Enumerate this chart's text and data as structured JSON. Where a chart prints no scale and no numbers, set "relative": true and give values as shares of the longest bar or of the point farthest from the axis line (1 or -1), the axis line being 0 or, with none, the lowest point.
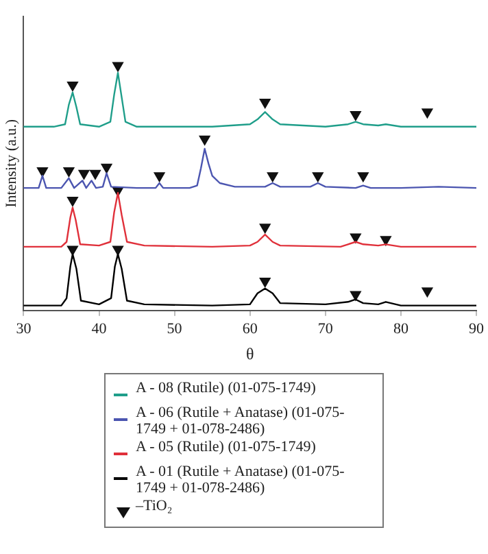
{
  "chart_data": {
    "type": "line",
    "xlabel": "θ",
    "ylabel": "Intensity (a.u.)",
    "relative": true,
    "xlim": [
      30,
      90
    ],
    "xticks": [
      30,
      40,
      50,
      60,
      70,
      80,
      90
    ],
    "grid": false,
    "legend": "bottom",
    "marker": "none",
    "series": [
      {
        "name": "A - 08 (Rutile) (01-075-1749)",
        "color": "#1f9e8a",
        "x": [
          30,
          34,
          35.5,
          36,
          36.5,
          37,
          37.5,
          40,
          41.5,
          42,
          42.5,
          43,
          43.5,
          45,
          50,
          55,
          60,
          61,
          62,
          63,
          64,
          70,
          73,
          74,
          75,
          77,
          78,
          80,
          85,
          90
        ],
        "values": [
          0.75,
          0.75,
          0.76,
          0.84,
          0.89,
          0.83,
          0.76,
          0.75,
          0.77,
          0.88,
          0.97,
          0.87,
          0.77,
          0.75,
          0.75,
          0.75,
          0.76,
          0.78,
          0.81,
          0.78,
          0.76,
          0.75,
          0.76,
          0.77,
          0.76,
          0.755,
          0.76,
          0.75,
          0.75,
          0.75
        ]
      },
      {
        "name": "A - 06 (Rutile + Anatase) (01-075-1749 + 01-078-2486)",
        "color": "#4b55b0",
        "x": [
          30,
          32,
          32.5,
          33,
          35,
          36,
          36.7,
          37.8,
          38.3,
          39,
          39.6,
          40.5,
          41,
          41.6,
          45,
          47.5,
          48,
          48.5,
          52,
          53,
          53.5,
          54,
          54.5,
          55,
          56,
          58,
          62,
          63,
          64,
          68,
          69,
          70,
          74,
          75,
          76,
          80,
          85,
          90
        ],
        "values": [
          0.5,
          0.5,
          0.55,
          0.5,
          0.5,
          0.54,
          0.5,
          0.53,
          0.5,
          0.53,
          0.5,
          0.505,
          0.56,
          0.505,
          0.5,
          0.5,
          0.52,
          0.5,
          0.5,
          0.51,
          0.58,
          0.66,
          0.6,
          0.55,
          0.52,
          0.505,
          0.505,
          0.52,
          0.505,
          0.505,
          0.52,
          0.505,
          0.5,
          0.51,
          0.5,
          0.5,
          0.505,
          0.5
        ]
      },
      {
        "name": "A - 05 (Rutile) (01-075-1749)",
        "color": "#e0303a",
        "x": [
          30,
          35,
          35.7,
          36.2,
          36.5,
          36.9,
          37.5,
          40,
          41.5,
          42,
          42.5,
          43,
          43.7,
          46,
          55,
          60,
          61,
          62,
          63,
          64,
          72,
          73,
          74,
          75,
          77,
          78,
          80,
          90
        ],
        "values": [
          0.26,
          0.26,
          0.28,
          0.38,
          0.42,
          0.37,
          0.27,
          0.265,
          0.28,
          0.4,
          0.48,
          0.39,
          0.28,
          0.265,
          0.26,
          0.265,
          0.28,
          0.31,
          0.28,
          0.265,
          0.26,
          0.27,
          0.28,
          0.27,
          0.265,
          0.27,
          0.26,
          0.26
        ]
      },
      {
        "name": "A - 01 (Rutile + Anatase) (01-075-1749 + 01-078-2486)",
        "color": "#000000",
        "x": [
          30,
          35,
          35.7,
          36.2,
          36.5,
          37,
          37.6,
          40,
          41.6,
          42.1,
          42.5,
          43,
          43.7,
          46,
          55,
          60,
          61,
          62,
          63,
          64,
          70,
          73,
          74,
          75,
          77,
          78,
          80,
          90
        ],
        "values": [
          0.02,
          0.02,
          0.05,
          0.18,
          0.23,
          0.17,
          0.04,
          0.025,
          0.05,
          0.18,
          0.23,
          0.17,
          0.04,
          0.025,
          0.02,
          0.025,
          0.07,
          0.09,
          0.07,
          0.03,
          0.025,
          0.035,
          0.045,
          0.03,
          0.025,
          0.035,
          0.02,
          0.02
        ]
      },
      {
        "name": "–TiO₂",
        "type": "scatter",
        "marker": "triangle",
        "color": "#111111",
        "x": [
          36.5,
          42.5,
          62,
          74,
          83.5,
          32.5,
          36,
          38,
          39.5,
          41,
          48,
          54,
          63,
          69,
          75,
          36.5,
          42.5,
          62,
          74,
          78,
          36.5,
          42.5,
          62,
          74,
          83.5
        ],
        "values": [
          0.92,
          1.0,
          0.85,
          0.8,
          0.81,
          0.57,
          0.57,
          0.56,
          0.56,
          0.585,
          0.55,
          0.7,
          0.55,
          0.55,
          0.55,
          0.45,
          0.49,
          0.34,
          0.3,
          0.29,
          0.25,
          0.25,
          0.12,
          0.065,
          0.08
        ]
      }
    ]
  }
}
